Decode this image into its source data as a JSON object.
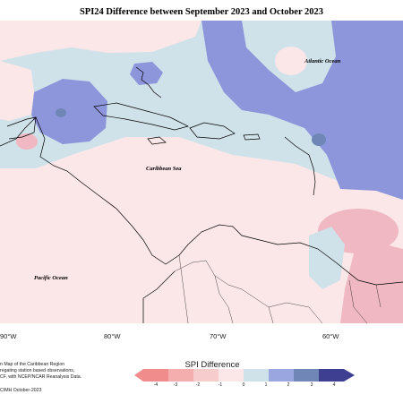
{
  "title": "SPI24 Difference between September 2023 and October 2023",
  "map": {
    "labels": {
      "atlantic": "Atlantic Ocean",
      "caribbean": "Caribbean Sea",
      "pacific": "Pacific Ocean"
    },
    "lon_ticks": [
      "90°W",
      "80°W",
      "70°W",
      "60°W"
    ]
  },
  "credit_lines": [
    "n Map of the Caribbean Region",
    "regating station based observations,",
    "CF, with NCEP/NCAR Reanalysis Data.",
    "CIMH October-2023"
  ],
  "legend": {
    "title": "SPI Difference",
    "ticks": [
      "-4",
      "-3",
      "-2",
      "-1",
      "0",
      "1",
      "2",
      "3",
      "4"
    ],
    "colors": [
      "#f08c8c",
      "#f4aeae",
      "#f7cccc",
      "#fbe6e8",
      "#ffffff",
      "#cfe2ea",
      "#9aa6e0",
      "#6f86b6",
      "#3e3f90"
    ]
  },
  "colors": {
    "strong_positive": "#8d96da",
    "weak_positive": "#cfe2ea",
    "weak_negative": "#fbe6e8",
    "moderate_negative": "#f0b8c2",
    "dark_positive": "#6f86b6"
  }
}
